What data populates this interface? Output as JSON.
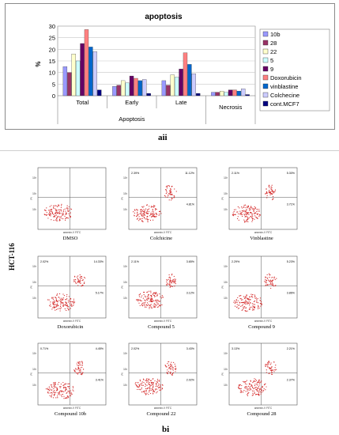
{
  "chart_data": {
    "type": "bar",
    "title": "apoptosis",
    "ylabel": "%",
    "ylim": [
      0,
      30
    ],
    "yticks": [
      0,
      5,
      10,
      15,
      20,
      25,
      30
    ],
    "categories": [
      "Total",
      "Early",
      "Late",
      ""
    ],
    "group_labels": [
      {
        "label": "Apoptosis"
      },
      {
        "label": "Necrosis"
      }
    ],
    "series": [
      {
        "name": "10b",
        "color": "#9999ff",
        "values": [
          12.5,
          4,
          6.5,
          1.5
        ]
      },
      {
        "name": "28",
        "color": "#993366",
        "values": [
          10,
          4.5,
          4.5,
          1.5
        ]
      },
      {
        "name": "22",
        "color": "#ffffcc",
        "values": [
          18,
          6.5,
          9,
          2
        ]
      },
      {
        "name": "5",
        "color": "#ccffff",
        "values": [
          15,
          5.5,
          8,
          1.5
        ]
      },
      {
        "name": "9",
        "color": "#660066",
        "values": [
          22.5,
          8.5,
          11.5,
          2.5
        ]
      },
      {
        "name": "Doxorubicin",
        "color": "#ff8080",
        "values": [
          28.5,
          7.5,
          18.5,
          2.5
        ]
      },
      {
        "name": "vinblastine",
        "color": "#0066cc",
        "values": [
          21,
          6.5,
          13.5,
          2
        ]
      },
      {
        "name": "Colchecine",
        "color": "#ccccff",
        "values": [
          19,
          7,
          9.5,
          3
        ]
      },
      {
        "name": "cont.MCF7",
        "color": "#000080",
        "values": [
          2.5,
          1,
          1,
          0.5
        ]
      }
    ],
    "grid": true,
    "legend_position": "right"
  },
  "captions": {
    "aii": "aii",
    "bi": "bi"
  },
  "row_label": "HCT-116",
  "flow": {
    "axis_x": "annexin-V FITC",
    "axis_y": "PI",
    "quadrant_tick_labels": [
      "10³",
      "10²",
      "10¹"
    ],
    "panels": [
      {
        "caption": "DMSO",
        "q": [
          "",
          "",
          ""
        ]
      },
      {
        "caption": "Colchicine",
        "q": [
          "2.39%",
          "11.12%",
          "4.81%"
        ]
      },
      {
        "caption": "Vinblastine",
        "q": [
          "2.11%",
          "5.30%",
          "3.71%"
        ]
      },
      {
        "caption": "Doxorubicin",
        "q": [
          "2.02%",
          "14.33%",
          "5.17%"
        ]
      },
      {
        "caption": "Compound 5",
        "q": [
          "2.11%",
          "3.65%",
          "3.12%"
        ]
      },
      {
        "caption": "Compound 9",
        "q": [
          "2.29%",
          "5.23%",
          "3.86%"
        ]
      },
      {
        "caption": "Compound 10b",
        "q": [
          "0.71%",
          "4.45%",
          "3.41%"
        ]
      },
      {
        "caption": "Compound 22",
        "q": [
          "2.02%",
          "3.43%",
          "2.02%"
        ]
      },
      {
        "caption": "Compound 28",
        "q": [
          "3.13%",
          "2.21%",
          "2.37%"
        ]
      }
    ]
  }
}
